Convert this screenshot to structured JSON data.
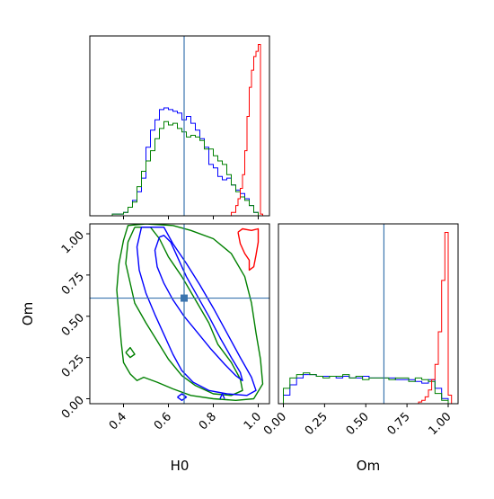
{
  "chart_data": {
    "type": "corner",
    "parameters": [
      "H0",
      "Om"
    ],
    "truth": {
      "H0": 0.67,
      "Om": 0.61
    },
    "series_colors": {
      "blue": "#0000ff",
      "green": "#008000",
      "red": "#ff0000",
      "truth": "#3b75af"
    },
    "panels": [
      {
        "id": "H0-marginal",
        "type": "step-histogram",
        "xlim": [
          0.25,
          1.05
        ],
        "y_ticks_shown": false,
        "series": [
          {
            "color": "blue",
            "edges": [
              0.35,
              0.4,
              0.42,
              0.44,
              0.46,
              0.48,
              0.5,
              0.52,
              0.54,
              0.56,
              0.58,
              0.6,
              0.62,
              0.64,
              0.66,
              0.68,
              0.7,
              0.72,
              0.74,
              0.76,
              0.78,
              0.8,
              0.82,
              0.84,
              0.86,
              0.88,
              0.9,
              0.92,
              0.94,
              0.96,
              0.98,
              1.0
            ],
            "values": [
              0.01,
              0.02,
              0.05,
              0.09,
              0.14,
              0.22,
              0.4,
              0.5,
              0.56,
              0.62,
              0.63,
              0.62,
              0.61,
              0.6,
              0.56,
              0.58,
              0.54,
              0.5,
              0.45,
              0.4,
              0.3,
              0.28,
              0.23,
              0.21,
              0.22,
              0.18,
              0.15,
              0.13,
              0.1,
              0.06,
              0.02
            ]
          },
          {
            "color": "green",
            "edges": [
              0.35,
              0.4,
              0.42,
              0.44,
              0.46,
              0.48,
              0.5,
              0.52,
              0.54,
              0.56,
              0.58,
              0.6,
              0.62,
              0.64,
              0.66,
              0.68,
              0.7,
              0.72,
              0.74,
              0.76,
              0.78,
              0.8,
              0.82,
              0.84,
              0.86,
              0.88,
              0.9,
              0.92,
              0.94,
              0.96,
              0.98,
              1.0
            ],
            "values": [
              0.01,
              0.02,
              0.05,
              0.08,
              0.17,
              0.26,
              0.32,
              0.38,
              0.45,
              0.51,
              0.55,
              0.53,
              0.54,
              0.51,
              0.49,
              0.46,
              0.47,
              0.46,
              0.44,
              0.39,
              0.39,
              0.35,
              0.32,
              0.3,
              0.24,
              0.18,
              0.14,
              0.11,
              0.09,
              0.06,
              0.02
            ]
          },
          {
            "color": "red",
            "edges": [
              0.88,
              0.9,
              0.91,
              0.92,
              0.93,
              0.94,
              0.95,
              0.96,
              0.97,
              0.98,
              0.99,
              1.0,
              1.01,
              1.02
            ],
            "values": [
              0.02,
              0.06,
              0.1,
              0.16,
              0.24,
              0.38,
              0.58,
              0.75,
              0.85,
              0.93,
              0.96,
              1.0,
              0.01
            ]
          }
        ]
      },
      {
        "id": "H0-Om-joint",
        "type": "contour",
        "xlim": [
          0.25,
          1.05
        ],
        "ylim": [
          -0.03,
          1.06
        ],
        "x_ticks": [
          "0.4",
          "0.6",
          "0.8",
          "1.0"
        ],
        "y_ticks": [
          "0.00",
          "0.25",
          "0.50",
          "0.75",
          "1.00"
        ],
        "xlabel": "H0",
        "ylabel": "Om",
        "contours": [
          {
            "color": "green",
            "points": [
              [
                0.45,
                1.04
              ],
              [
                0.42,
                0.95
              ],
              [
                0.41,
                0.82
              ],
              [
                0.43,
                0.7
              ],
              [
                0.45,
                0.58
              ],
              [
                0.5,
                0.46
              ],
              [
                0.55,
                0.35
              ],
              [
                0.6,
                0.24
              ],
              [
                0.66,
                0.14
              ],
              [
                0.72,
                0.08
              ],
              [
                0.8,
                0.03
              ],
              [
                0.88,
                0.02
              ],
              [
                0.93,
                0.05
              ],
              [
                0.92,
                0.12
              ],
              [
                0.88,
                0.22
              ],
              [
                0.82,
                0.33
              ],
              [
                0.78,
                0.46
              ],
              [
                0.72,
                0.6
              ],
              [
                0.66,
                0.74
              ],
              [
                0.6,
                0.86
              ],
              [
                0.56,
                0.97
              ],
              [
                0.52,
                1.04
              ],
              [
                0.45,
                1.04
              ]
            ]
          },
          {
            "color": "green",
            "points": [
              [
                0.62,
                1.05
              ],
              [
                0.7,
                1.02
              ],
              [
                0.8,
                0.97
              ],
              [
                0.88,
                0.88
              ],
              [
                0.94,
                0.74
              ],
              [
                0.97,
                0.58
              ],
              [
                0.99,
                0.4
              ],
              [
                1.01,
                0.24
              ],
              [
                1.02,
                0.09
              ],
              [
                0.98,
                0.0
              ],
              [
                0.9,
                -0.01
              ],
              [
                0.8,
                0.0
              ],
              [
                0.7,
                0.02
              ],
              [
                0.62,
                0.06
              ],
              [
                0.55,
                0.1
              ],
              [
                0.49,
                0.13
              ],
              [
                0.46,
                0.11
              ],
              [
                0.43,
                0.15
              ],
              [
                0.4,
                0.22
              ],
              [
                0.39,
                0.34
              ],
              [
                0.38,
                0.5
              ],
              [
                0.37,
                0.66
              ],
              [
                0.38,
                0.82
              ],
              [
                0.4,
                0.96
              ],
              [
                0.42,
                1.05
              ],
              [
                0.5,
                1.06
              ],
              [
                0.62,
                1.05
              ]
            ]
          },
          {
            "color": "green",
            "points": [
              [
                0.41,
                0.28
              ],
              [
                0.43,
                0.25
              ],
              [
                0.45,
                0.27
              ],
              [
                0.43,
                0.31
              ],
              [
                0.41,
                0.28
              ]
            ]
          },
          {
            "color": "blue",
            "points": [
              [
                0.56,
                0.98
              ],
              [
                0.54,
                0.9
              ],
              [
                0.55,
                0.8
              ],
              [
                0.58,
                0.7
              ],
              [
                0.62,
                0.6
              ],
              [
                0.67,
                0.5
              ],
              [
                0.73,
                0.4
              ],
              [
                0.79,
                0.3
              ],
              [
                0.85,
                0.21
              ],
              [
                0.9,
                0.14
              ],
              [
                0.93,
                0.11
              ],
              [
                0.92,
                0.16
              ],
              [
                0.88,
                0.25
              ],
              [
                0.83,
                0.37
              ],
              [
                0.78,
                0.5
              ],
              [
                0.73,
                0.62
              ],
              [
                0.68,
                0.74
              ],
              [
                0.64,
                0.86
              ],
              [
                0.61,
                0.95
              ],
              [
                0.58,
                0.99
              ],
              [
                0.56,
                0.98
              ]
            ]
          },
          {
            "color": "blue",
            "points": [
              [
                0.48,
                1.04
              ],
              [
                0.46,
                0.92
              ],
              [
                0.47,
                0.78
              ],
              [
                0.5,
                0.64
              ],
              [
                0.54,
                0.51
              ],
              [
                0.58,
                0.39
              ],
              [
                0.62,
                0.27
              ],
              [
                0.66,
                0.17
              ],
              [
                0.71,
                0.1
              ],
              [
                0.78,
                0.05
              ],
              [
                0.86,
                0.03
              ],
              [
                0.95,
                0.02
              ],
              [
                0.99,
                0.05
              ],
              [
                0.97,
                0.13
              ],
              [
                0.92,
                0.25
              ],
              [
                0.86,
                0.4
              ],
              [
                0.8,
                0.55
              ],
              [
                0.74,
                0.69
              ],
              [
                0.68,
                0.82
              ],
              [
                0.62,
                0.94
              ],
              [
                0.58,
                1.04
              ],
              [
                0.48,
                1.04
              ]
            ]
          },
          {
            "color": "blue",
            "points": [
              [
                0.64,
                0.01
              ],
              [
                0.66,
                -0.01
              ],
              [
                0.68,
                0.01
              ],
              [
                0.66,
                0.03
              ],
              [
                0.64,
                0.01
              ]
            ]
          },
          {
            "color": "blue",
            "points": [
              [
                0.83,
                0.0
              ],
              [
                0.84,
                0.03
              ],
              [
                0.85,
                0.0
              ]
            ]
          },
          {
            "color": "red",
            "points": [
              [
                0.91,
                1.01
              ],
              [
                0.93,
                1.03
              ],
              [
                0.97,
                1.02
              ],
              [
                1.0,
                1.03
              ],
              [
                1.0,
                0.95
              ],
              [
                0.99,
                0.87
              ],
              [
                0.98,
                0.8
              ],
              [
                0.96,
                0.78
              ],
              [
                0.96,
                0.84
              ],
              [
                0.94,
                0.88
              ],
              [
                0.92,
                0.94
              ],
              [
                0.91,
                1.01
              ]
            ]
          }
        ]
      },
      {
        "id": "Om-marginal",
        "type": "step-histogram",
        "xlim": [
          -0.03,
          1.06
        ],
        "x_ticks": [
          "0.00",
          "0.25",
          "0.50",
          "0.75",
          "1.00"
        ],
        "xlabel": "Om",
        "y_ticks_shown": false,
        "series": [
          {
            "color": "blue",
            "edges": [
              0.0,
              0.04,
              0.08,
              0.12,
              0.16,
              0.2,
              0.24,
              0.28,
              0.32,
              0.36,
              0.4,
              0.44,
              0.48,
              0.52,
              0.56,
              0.6,
              0.64,
              0.68,
              0.72,
              0.76,
              0.8,
              0.84,
              0.88,
              0.92,
              0.96,
              1.0
            ],
            "values": [
              0.05,
              0.11,
              0.15,
              0.17,
              0.17,
              0.16,
              0.16,
              0.16,
              0.15,
              0.16,
              0.15,
              0.15,
              0.16,
              0.15,
              0.15,
              0.15,
              0.15,
              0.14,
              0.14,
              0.14,
              0.13,
              0.12,
              0.14,
              0.09,
              0.03
            ]
          },
          {
            "color": "green",
            "edges": [
              0.0,
              0.04,
              0.08,
              0.12,
              0.16,
              0.2,
              0.24,
              0.28,
              0.32,
              0.36,
              0.4,
              0.44,
              0.48,
              0.52,
              0.56,
              0.6,
              0.64,
              0.68,
              0.72,
              0.76,
              0.8,
              0.84,
              0.88,
              0.92,
              0.96,
              1.0
            ],
            "values": [
              0.09,
              0.15,
              0.17,
              0.18,
              0.17,
              0.16,
              0.15,
              0.16,
              0.16,
              0.17,
              0.15,
              0.16,
              0.14,
              0.15,
              0.15,
              0.15,
              0.14,
              0.15,
              0.15,
              0.13,
              0.15,
              0.14,
              0.13,
              0.06,
              0.02
            ]
          },
          {
            "color": "red",
            "edges": [
              0.82,
              0.84,
              0.86,
              0.88,
              0.9,
              0.92,
              0.94,
              0.96,
              0.98,
              1.0,
              1.02
            ],
            "values": [
              0.01,
              0.02,
              0.04,
              0.08,
              0.14,
              0.23,
              0.42,
              0.72,
              1.0,
              0.05
            ]
          }
        ]
      }
    ]
  }
}
